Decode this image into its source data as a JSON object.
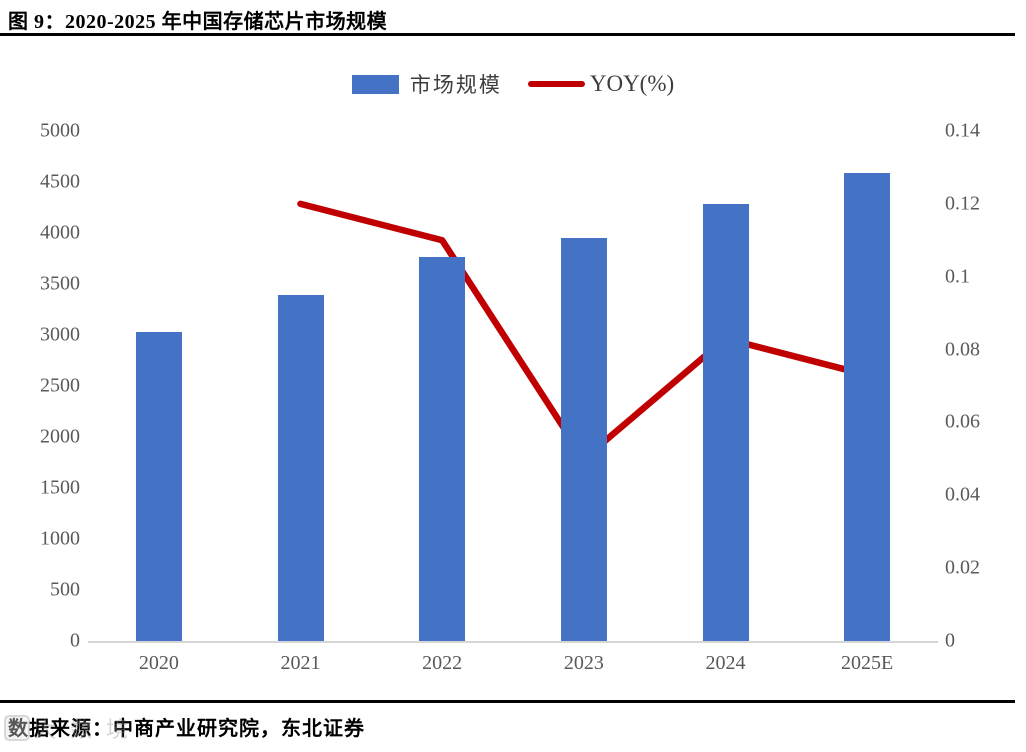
{
  "figure": {
    "title": "图 9：2020-2025 年中国存储芯片市场规模",
    "source": "数据来源：中商产业研究院，东北证券",
    "watermark": "大数境"
  },
  "chart_data": {
    "type": "bar",
    "subtype": "bar+line combo, dual axis",
    "title": "2020-2025 年中国存储芯片市场规模",
    "categories": [
      "2020",
      "2021",
      "2022",
      "2023",
      "2024",
      "2025E"
    ],
    "series": [
      {
        "name": "市场规模",
        "type": "bar",
        "axis": "left",
        "color": "#4472C4",
        "values": [
          3025,
          3390,
          3765,
          3950,
          4280,
          4590
        ]
      },
      {
        "name": "YOY(%)",
        "type": "line",
        "axis": "right",
        "color": "#C00000",
        "values": [
          null,
          0.12,
          0.11,
          0.05,
          0.083,
          0.073
        ]
      }
    ],
    "left_axis": {
      "min": 0,
      "max": 5000,
      "tick_labels": [
        "5000",
        "4500",
        "4000",
        "3500",
        "3000",
        "2500",
        "2000",
        "1500",
        "1000",
        "500",
        "0"
      ]
    },
    "right_axis": {
      "min": 0,
      "max": 0.14,
      "tick_labels": [
        "0.14",
        "0.12",
        "0.1",
        "0.08",
        "0.06",
        "0.04",
        "0.02",
        "0"
      ]
    },
    "legend": [
      {
        "label": "市场规模",
        "color": "#4472C4",
        "shape": "rect"
      },
      {
        "label": "YOY(%)",
        "color": "#C00000",
        "shape": "line"
      }
    ],
    "legend_position": "top-center",
    "grid": false
  }
}
